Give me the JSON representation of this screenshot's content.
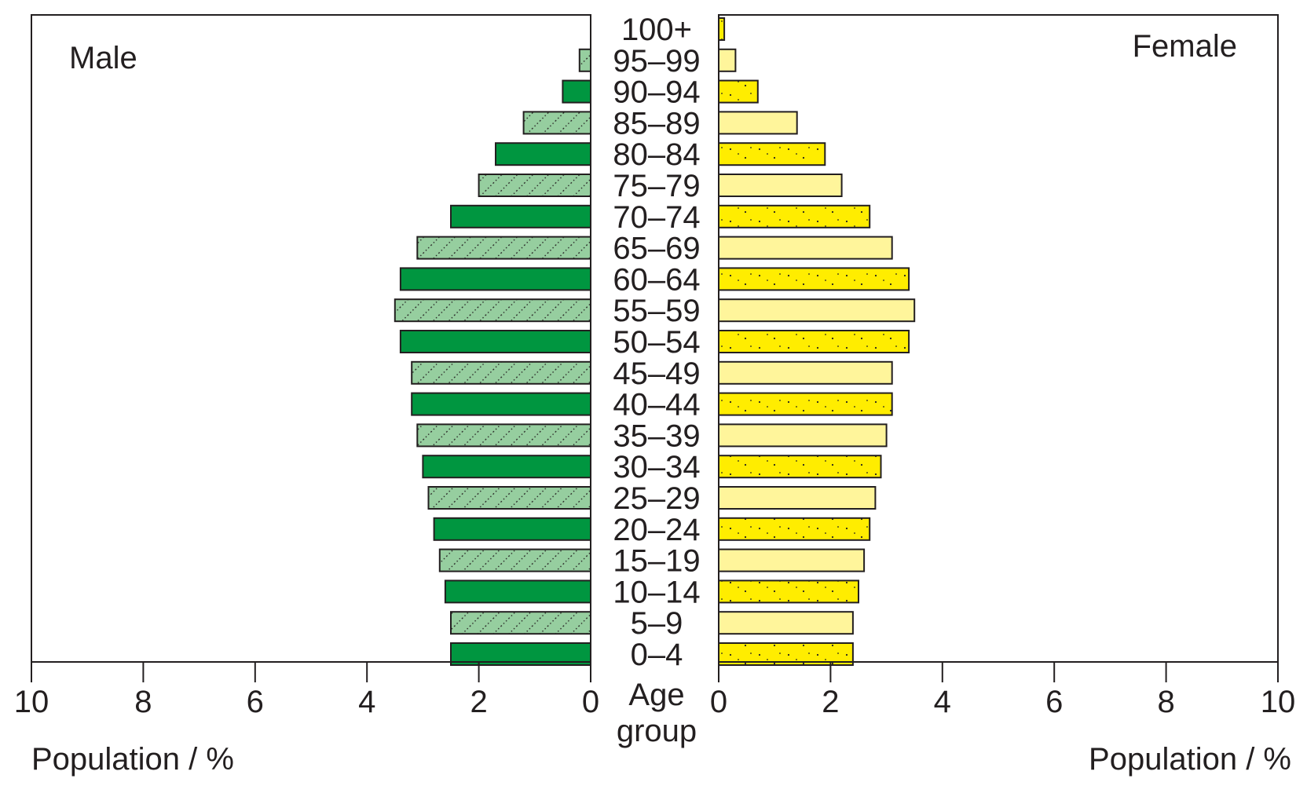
{
  "colors": {
    "male_solid": "#009640",
    "male_hatched": "#96ce9f",
    "female_dotted": "#ffed00",
    "female_light": "#fff59b",
    "outline": "#231f20"
  },
  "chart_data": {
    "type": "bar",
    "orientation": "horizontal",
    "layout": "population-pyramid",
    "categories": [
      "100+",
      "95–99",
      "90–94",
      "85–89",
      "80–84",
      "75–79",
      "70–74",
      "65–69",
      "60–64",
      "55–59",
      "50–54",
      "45–49",
      "40–44",
      "35–39",
      "30–34",
      "25–29",
      "20–24",
      "15–19",
      "10–14",
      "5–9",
      "0–4"
    ],
    "category_label": "Age group",
    "category_label_lines": [
      "Age",
      "group"
    ],
    "series": [
      {
        "name": "Male",
        "side": "left",
        "values": [
          0,
          0.2,
          0.5,
          1.2,
          1.7,
          2.0,
          2.5,
          3.1,
          3.4,
          3.5,
          3.4,
          3.2,
          3.2,
          3.1,
          3.0,
          2.9,
          2.8,
          2.7,
          2.6,
          2.5,
          2.5
        ]
      },
      {
        "name": "Female",
        "side": "right",
        "values": [
          0.1,
          0.3,
          0.7,
          1.4,
          1.9,
          2.2,
          2.7,
          3.1,
          3.4,
          3.5,
          3.4,
          3.1,
          3.1,
          3.0,
          2.9,
          2.8,
          2.7,
          2.6,
          2.5,
          2.4,
          2.4
        ]
      }
    ],
    "xlabel_left": "Population / %",
    "xlabel_right": "Population / %",
    "xlim": [
      0,
      10
    ],
    "xticks": [
      0,
      2,
      4,
      6,
      8,
      10
    ],
    "grid": false,
    "legend": "none"
  }
}
